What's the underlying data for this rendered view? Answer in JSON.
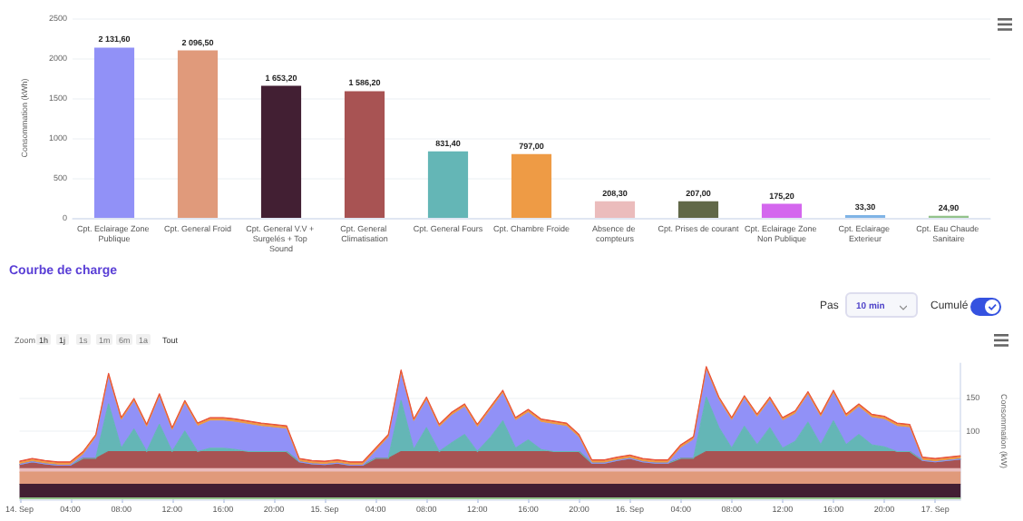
{
  "chart_data": [
    {
      "type": "bar",
      "ylabel": "Consommation (kWh)",
      "categories": [
        "Cpt. Eclairage Zone Publique",
        "Cpt. General Froid",
        "Cpt. General V.V + Surgelés + Top Sound",
        "Cpt. General Climatisation",
        "Cpt. General Fours",
        "Cpt. Chambre Froide",
        "Absence de compteurs",
        "Cpt. Prises de courant",
        "Cpt. Eclairage Zone Non Publique",
        "Cpt. Eclairage Exterieur",
        "Cpt. Eau Chaude Sanitaire"
      ],
      "values": [
        2131.6,
        2096.5,
        1653.2,
        1586.2,
        831.4,
        797.0,
        208.3,
        207.0,
        175.2,
        33.3,
        24.9
      ],
      "value_labels": [
        "2 131,60",
        "2 096,50",
        "1 653,20",
        "1 586,20",
        "831,40",
        "797,00",
        "208,30",
        "207,00",
        "175,20",
        "33,30",
        "24,90"
      ],
      "colors": [
        "#9191f7",
        "#e09a7b",
        "#421f33",
        "#a85353",
        "#64b6b6",
        "#ee9b45",
        "#ebbcbc",
        "#616848",
        "#d467ee",
        "#7fb4e6",
        "#93c38b"
      ],
      "ylim": [
        0,
        2500
      ],
      "yticks": [
        0,
        500,
        1000,
        1500,
        2000,
        2500
      ],
      "grid": "y"
    },
    {
      "type": "area",
      "stacked": true,
      "title": "Courbe de charge",
      "ylabel": "Consommation (kW)",
      "annotations": [
        "Pas",
        "10 min",
        "Cumulé",
        "Zoom",
        "1h",
        "1j",
        "1s",
        "1m",
        "6m",
        "1a",
        "Tout"
      ],
      "x": [
        "--09-14T00:00",
        "--09-14T01:00",
        "--09-14T02:00",
        "--09-14T03:00",
        "--09-14T04:00",
        "--09-14T05:00",
        "--09-14T06:00",
        "--09-14T07:00",
        "--09-14T08:00",
        "--09-14T09:00",
        "--09-14T10:00",
        "--09-14T11:00",
        "--09-14T12:00",
        "--09-14T13:00",
        "--09-14T14:00",
        "--09-14T15:00",
        "--09-14T16:00",
        "--09-14T17:00",
        "--09-14T18:00",
        "--09-14T19:00",
        "--09-14T20:00",
        "--09-14T21:00",
        "--09-14T22:00",
        "--09-14T23:00",
        "--09-15T00:00",
        "--09-15T01:00",
        "--09-15T02:00",
        "--09-15T03:00",
        "--09-15T04:00",
        "--09-15T05:00",
        "--09-15T06:00",
        "--09-15T07:00",
        "--09-15T08:00",
        "--09-15T09:00",
        "--09-15T10:00",
        "--09-15T11:00",
        "--09-15T12:00",
        "--09-15T13:00",
        "--09-15T14:00",
        "--09-15T15:00",
        "--09-15T16:00",
        "--09-15T17:00",
        "--09-15T18:00",
        "--09-15T19:00",
        "--09-15T20:00",
        "--09-15T21:00",
        "--09-15T22:00",
        "--09-15T23:00",
        "--09-16T00:00",
        "--09-16T01:00",
        "--09-16T02:00",
        "--09-16T03:00",
        "--09-16T04:00",
        "--09-16T05:00",
        "--09-16T06:00",
        "--09-16T07:00",
        "--09-16T08:00",
        "--09-16T09:00",
        "--09-16T10:00",
        "--09-16T11:00",
        "--09-16T12:00",
        "--09-16T13:00",
        "--09-16T14:00",
        "--09-16T15:00",
        "--09-16T16:00",
        "--09-16T17:00",
        "--09-16T18:00",
        "--09-16T19:00",
        "--09-16T20:00",
        "--09-16T21:00",
        "--09-16T22:00",
        "--09-16T23:00",
        "--09-17T00:00",
        "--09-17T01:00",
        "--09-17T02:00"
      ],
      "xlim": [
        "--09-14T00:00",
        "--09-17T02:00"
      ],
      "xticks": [
        {
          "value": "--09-14T00:00",
          "label": "14. Sep"
        },
        {
          "value": "--09-14T04:00",
          "label": "04:00"
        },
        {
          "value": "--09-14T08:00",
          "label": "08:00"
        },
        {
          "value": "--09-14T12:00",
          "label": "12:00"
        },
        {
          "value": "--09-14T16:00",
          "label": "16:00"
        },
        {
          "value": "--09-14T20:00",
          "label": "20:00"
        },
        {
          "value": "--09-15T00:00",
          "label": "15. Sep"
        },
        {
          "value": "--09-15T04:00",
          "label": "04:00"
        },
        {
          "value": "--09-15T08:00",
          "label": "08:00"
        },
        {
          "value": "--09-15T12:00",
          "label": "12:00"
        },
        {
          "value": "--09-15T16:00",
          "label": "16:00"
        },
        {
          "value": "--09-15T20:00",
          "label": "20:00"
        },
        {
          "value": "--09-16T00:00",
          "label": "16. Sep"
        },
        {
          "value": "--09-16T04:00",
          "label": "04:00"
        },
        {
          "value": "--09-16T08:00",
          "label": "08:00"
        },
        {
          "value": "--09-16T12:00",
          "label": "12:00"
        },
        {
          "value": "--09-16T16:00",
          "label": "16:00"
        },
        {
          "value": "--09-16T20:00",
          "label": "20:00"
        },
        {
          "value": "--09-17T00:00",
          "label": "17. Sep"
        }
      ],
      "ylim": [
        0,
        200
      ],
      "yticks": [
        100,
        150
      ],
      "grid": "y",
      "series": [
        {
          "color": "#93c38b",
          "values": [
            2,
            2,
            2,
            2,
            2,
            2,
            2,
            2,
            2,
            2,
            2,
            2,
            2,
            2,
            2,
            2,
            2,
            2,
            2,
            2,
            2,
            2,
            2,
            2,
            2,
            2,
            2,
            2,
            2,
            2,
            2,
            2,
            2,
            2,
            2,
            2,
            2,
            2,
            2,
            2,
            2,
            2,
            2,
            2,
            2,
            2,
            2,
            2,
            2,
            2,
            2,
            2,
            2,
            2,
            2,
            2,
            2,
            2,
            2,
            2,
            2,
            2,
            2,
            2,
            2,
            2,
            2,
            2,
            2,
            2,
            2,
            2,
            2,
            2,
            2
          ]
        },
        {
          "color": "#421f33",
          "values": [
            20,
            20,
            20,
            20,
            20,
            20,
            20,
            20,
            20,
            20,
            20,
            20,
            20,
            20,
            20,
            20,
            20,
            20,
            20,
            20,
            20,
            20,
            20,
            20,
            20,
            20,
            20,
            20,
            20,
            20,
            20,
            20,
            20,
            20,
            20,
            20,
            20,
            20,
            20,
            20,
            20,
            20,
            20,
            20,
            20,
            20,
            20,
            20,
            20,
            20,
            20,
            20,
            20,
            20,
            20,
            20,
            20,
            20,
            20,
            20,
            20,
            20,
            20,
            20,
            20,
            20,
            20,
            20,
            20,
            20,
            20,
            20,
            20,
            20,
            20
          ]
        },
        {
          "color": "#e09a7b",
          "values": [
            18,
            18,
            18,
            18,
            18,
            18,
            18,
            18,
            18,
            18,
            18,
            18,
            18,
            18,
            18,
            18,
            18,
            18,
            18,
            18,
            18,
            18,
            18,
            18,
            18,
            18,
            18,
            18,
            18,
            18,
            18,
            18,
            18,
            18,
            18,
            18,
            18,
            18,
            18,
            18,
            18,
            18,
            18,
            18,
            18,
            18,
            18,
            18,
            18,
            18,
            18,
            18,
            18,
            18,
            18,
            18,
            18,
            18,
            18,
            18,
            18,
            18,
            18,
            18,
            18,
            18,
            18,
            18,
            18,
            18,
            18,
            18,
            18,
            18,
            18
          ]
        },
        {
          "color": "#ebbcbc",
          "values": [
            5,
            5,
            5,
            5,
            5,
            5,
            5,
            5,
            5,
            5,
            5,
            5,
            5,
            5,
            5,
            5,
            5,
            5,
            5,
            5,
            5,
            5,
            5,
            5,
            5,
            5,
            5,
            5,
            5,
            5,
            5,
            5,
            5,
            5,
            5,
            5,
            5,
            5,
            5,
            5,
            5,
            5,
            5,
            5,
            5,
            5,
            5,
            5,
            5,
            5,
            5,
            5,
            5,
            5,
            5,
            5,
            5,
            5,
            5,
            5,
            5,
            5,
            5,
            5,
            5,
            5,
            5,
            5,
            5,
            5,
            5,
            5,
            5,
            5,
            5
          ]
        },
        {
          "color": "#a85353",
          "values": [
            6,
            10,
            7,
            5,
            5,
            15,
            15,
            25,
            25,
            25,
            25,
            25,
            25,
            25,
            25,
            25,
            25,
            25,
            25,
            25,
            25,
            25,
            10,
            7,
            6,
            8,
            5,
            5,
            15,
            15,
            25,
            25,
            25,
            25,
            25,
            25,
            25,
            25,
            25,
            25,
            25,
            25,
            25,
            25,
            25,
            8,
            8,
            12,
            15,
            10,
            8,
            8,
            15,
            15,
            25,
            25,
            25,
            25,
            25,
            25,
            25,
            25,
            25,
            25,
            25,
            25,
            25,
            25,
            25,
            25,
            25,
            12,
            10,
            12,
            14
          ]
        },
        {
          "color": "#64b6b6",
          "values": [
            0,
            0,
            0,
            0,
            0,
            0,
            0,
            70,
            5,
            33,
            0,
            40,
            0,
            30,
            0,
            5,
            5,
            3,
            0,
            0,
            0,
            0,
            0,
            0,
            0,
            0,
            0,
            0,
            0,
            0,
            75,
            3,
            35,
            0,
            13,
            25,
            0,
            20,
            45,
            5,
            17,
            3,
            0,
            0,
            0,
            0,
            0,
            0,
            0,
            0,
            0,
            0,
            0,
            0,
            80,
            35,
            5,
            37,
            10,
            35,
            5,
            15,
            43,
            10,
            45,
            10,
            25,
            10,
            7,
            0,
            0,
            0,
            0,
            0,
            0
          ]
        },
        {
          "color": "#9191f7",
          "values": [
            0,
            0,
            0,
            0,
            0,
            5,
            30,
            40,
            40,
            40,
            35,
            40,
            30,
            40,
            37,
            40,
            40,
            40,
            40,
            37,
            35,
            33,
            0,
            0,
            0,
            0,
            0,
            0,
            10,
            30,
            40,
            40,
            40,
            35,
            40,
            40,
            35,
            40,
            40,
            40,
            40,
            40,
            40,
            37,
            20,
            0,
            0,
            0,
            0,
            0,
            0,
            0,
            15,
            27,
            40,
            40,
            40,
            40,
            40,
            40,
            40,
            40,
            40,
            40,
            40,
            40,
            40,
            40,
            40,
            37,
            35,
            0,
            0,
            0,
            0
          ]
        },
        {
          "color": "#ee9b45",
          "values": [
            3,
            3,
            3,
            3,
            3,
            3,
            3,
            3,
            3,
            3,
            3,
            3,
            3,
            3,
            3,
            3,
            3,
            3,
            3,
            3,
            3,
            3,
            3,
            3,
            3,
            3,
            3,
            3,
            3,
            3,
            3,
            3,
            3,
            3,
            3,
            3,
            3,
            3,
            3,
            3,
            3,
            3,
            3,
            3,
            3,
            3,
            3,
            3,
            3,
            3,
            3,
            3,
            3,
            3,
            3,
            3,
            3,
            3,
            3,
            3,
            3,
            3,
            3,
            3,
            3,
            3,
            3,
            3,
            3,
            3,
            3,
            3,
            3,
            3,
            3
          ]
        },
        {
          "color": "#e8523a",
          "values": [
            2,
            2,
            2,
            2,
            2,
            2,
            2,
            2,
            2,
            2,
            2,
            2,
            2,
            2,
            2,
            2,
            2,
            2,
            2,
            2,
            2,
            2,
            2,
            2,
            2,
            2,
            2,
            2,
            2,
            2,
            2,
            2,
            2,
            2,
            2,
            2,
            2,
            2,
            2,
            2,
            2,
            2,
            2,
            2,
            2,
            2,
            2,
            2,
            2,
            2,
            2,
            2,
            2,
            2,
            2,
            2,
            2,
            2,
            2,
            2,
            2,
            2,
            2,
            2,
            2,
            2,
            2,
            2,
            2,
            2,
            2,
            2,
            2,
            2,
            2
          ]
        }
      ]
    }
  ]
}
